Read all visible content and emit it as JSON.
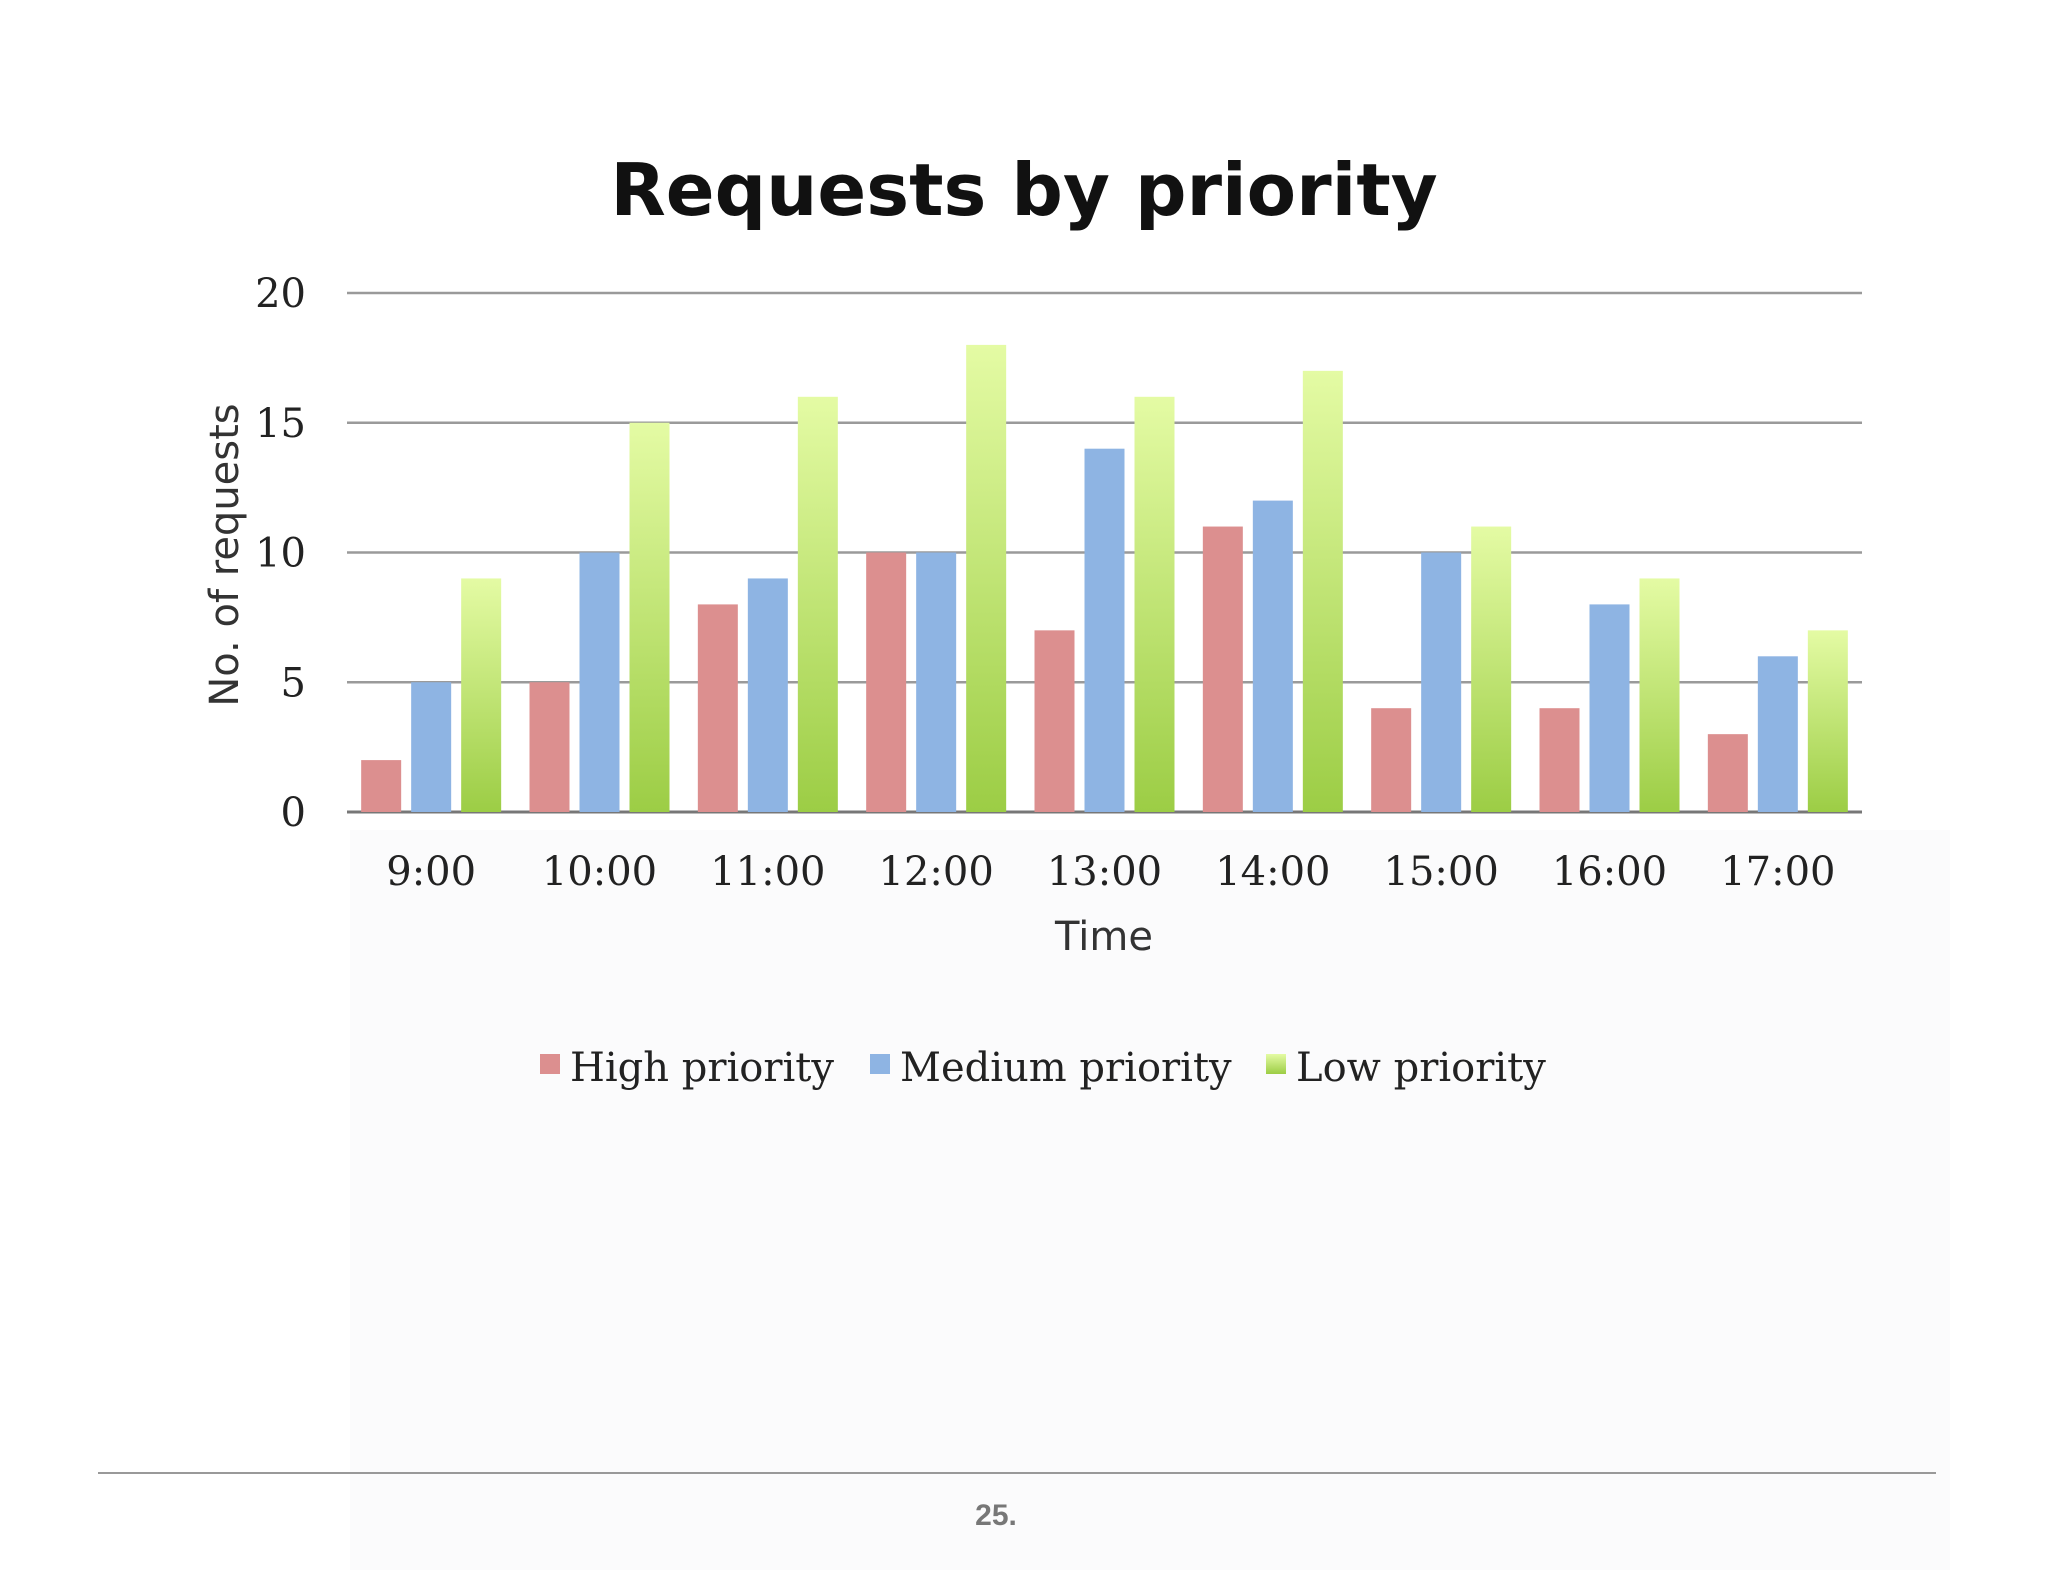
{
  "chart_data": {
    "type": "bar",
    "title": "Requests by priority",
    "xlabel": "Time",
    "ylabel": "No. of requests",
    "categories": [
      "9:00",
      "10:00",
      "11:00",
      "12:00",
      "13:00",
      "14:00",
      "15:00",
      "16:00",
      "17:00"
    ],
    "series": [
      {
        "name": "High priority",
        "color": "#dc8f8f",
        "values": [
          2,
          5,
          8,
          10,
          7,
          11,
          4,
          4,
          3
        ]
      },
      {
        "name": "Medium priority",
        "color": "#8eb4e3",
        "values": [
          5,
          10,
          9,
          10,
          14,
          12,
          10,
          8,
          6
        ]
      },
      {
        "name": "Low priority",
        "color": "#a8d050",
        "values": [
          9,
          15,
          16,
          18,
          16,
          17,
          11,
          9,
          7
        ]
      }
    ],
    "ylim": [
      0,
      20
    ],
    "yticks": [
      0,
      5,
      10,
      15,
      20
    ],
    "grid": true,
    "legend_position": "bottom"
  },
  "footer": {
    "page_number": "25."
  }
}
